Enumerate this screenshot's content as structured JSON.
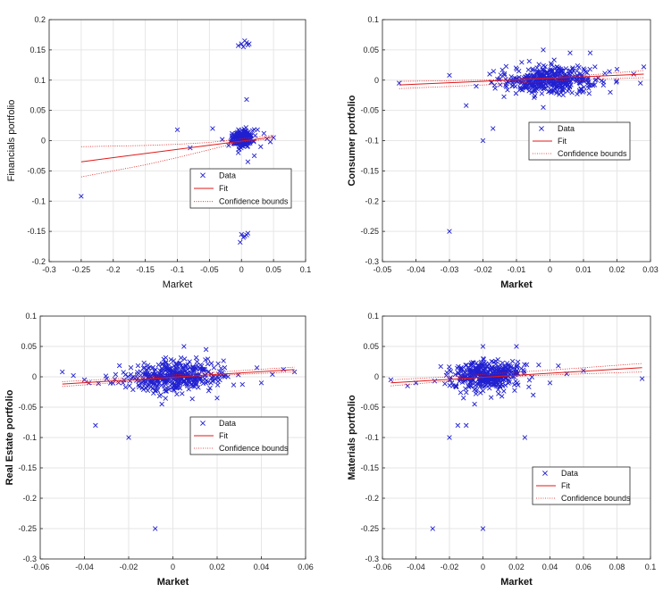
{
  "chart_data": [
    {
      "type": "scatter",
      "xlabel": "Market",
      "ylabel": "Financials portfolio",
      "xlim": [
        -0.3,
        0.1
      ],
      "ylim": [
        -0.2,
        0.2
      ],
      "xticks": [
        -0.3,
        -0.25,
        -0.2,
        -0.15,
        -0.1,
        -0.05,
        0,
        0.05,
        0.1
      ],
      "xtick_labels": [
        "-0.3",
        "-0.25",
        "-0.2",
        "-0.15",
        "-0.1",
        "-0.05",
        "0",
        "0.05",
        "0.1"
      ],
      "yticks": [
        -0.2,
        -0.15,
        -0.1,
        -0.05,
        0,
        0.05,
        0.1,
        0.15,
        0.2
      ],
      "ytick_labels": [
        "-0.2",
        "-0.15",
        "-0.1",
        "-0.05",
        "0",
        "0.05",
        "0.1",
        "0.15",
        "0.2"
      ],
      "grid": true,
      "legend": [
        "Data",
        "Fit",
        "Confidence bounds"
      ],
      "legend_loc": "center-right",
      "cluster": {
        "cx": 0.002,
        "cy": 0.003,
        "sx": 0.008,
        "sy": 0.006,
        "n": 260,
        "rx": 0.02,
        "ry": 0.018
      },
      "data": [
        [
          -0.25,
          -0.092
        ],
        [
          -0.1,
          0.018
        ],
        [
          -0.08,
          -0.012
        ],
        [
          -0.045,
          0.02
        ],
        [
          -0.03,
          0.002
        ],
        [
          -0.02,
          -0.008
        ],
        [
          -0.015,
          0.008
        ],
        [
          0.008,
          0.068
        ],
        [
          0.0,
          0.16
        ],
        [
          0.005,
          0.165
        ],
        [
          0.01,
          0.158
        ],
        [
          -0.005,
          0.157
        ],
        [
          0.012,
          0.16
        ],
        [
          0.003,
          0.155
        ],
        [
          0.008,
          0.162
        ],
        [
          0.0,
          -0.155
        ],
        [
          0.005,
          -0.158
        ],
        [
          0.01,
          -0.153
        ],
        [
          -0.002,
          -0.168
        ],
        [
          0.008,
          -0.156
        ],
        [
          0.003,
          -0.16
        ],
        [
          0.05,
          0.005
        ],
        [
          0.04,
          0.003
        ],
        [
          0.03,
          -0.01
        ],
        [
          0.035,
          0.012
        ],
        [
          0.01,
          -0.035
        ],
        [
          0.02,
          -0.025
        ],
        [
          -0.005,
          -0.02
        ],
        [
          0.025,
          0.018
        ],
        [
          0.045,
          -0.002
        ]
      ],
      "fit": {
        "x": [
          -0.25,
          0.05
        ],
        "y": [
          -0.035,
          0.006
        ]
      },
      "bound_upper": {
        "x": [
          -0.25,
          -0.15,
          -0.1,
          -0.05,
          0.0,
          0.05
        ],
        "y": [
          -0.01,
          -0.008,
          -0.006,
          -0.003,
          0.003,
          0.009
        ]
      },
      "bound_lower": {
        "x": [
          -0.25,
          -0.15,
          -0.1,
          -0.05,
          0.0,
          0.05
        ],
        "y": [
          -0.06,
          -0.04,
          -0.028,
          -0.015,
          -0.002,
          0.003
        ]
      }
    },
    {
      "type": "scatter",
      "xlabel": "Market",
      "ylabel": "Consumer portfolio",
      "xlim": [
        -0.05,
        0.03
      ],
      "ylim": [
        -0.3,
        0.1
      ],
      "xticks": [
        -0.05,
        -0.04,
        -0.03,
        -0.02,
        -0.01,
        0,
        0.01,
        0.02,
        0.03
      ],
      "xtick_labels": [
        "-0.05",
        "-0.04",
        "-0.03",
        "-0.02",
        "-0.01",
        "0",
        "0.01",
        "0.02",
        "0.03"
      ],
      "yticks": [
        -0.3,
        -0.25,
        -0.2,
        -0.15,
        -0.1,
        -0.05,
        0,
        0.05,
        0.1
      ],
      "ytick_labels": [
        "-0.3",
        "-0.25",
        "-0.2",
        "-0.15",
        "-0.1",
        "-0.05",
        "0",
        "0.05",
        "0.1"
      ],
      "grid": true,
      "legend": [
        "Data",
        "Fit",
        "Confidence bounds"
      ],
      "legend_loc": "center-right",
      "cluster": {
        "cx": 0.0,
        "cy": 0.0,
        "sx": 0.007,
        "sy": 0.011,
        "n": 420,
        "rx": 0.022,
        "ry": 0.035
      },
      "data": [
        [
          -0.045,
          -0.005
        ],
        [
          -0.03,
          0.008
        ],
        [
          -0.03,
          -0.25
        ],
        [
          -0.025,
          -0.042
        ],
        [
          -0.022,
          -0.01
        ],
        [
          -0.02,
          -0.1
        ],
        [
          -0.017,
          -0.08
        ],
        [
          -0.018,
          0.01
        ],
        [
          0.028,
          0.022
        ],
        [
          0.025,
          0.01
        ],
        [
          0.027,
          -0.005
        ],
        [
          0.02,
          0.018
        ],
        [
          0.018,
          -0.02
        ],
        [
          -0.002,
          0.05
        ],
        [
          0.006,
          0.045
        ],
        [
          -0.002,
          -0.045
        ],
        [
          0.012,
          0.045
        ]
      ],
      "fit": {
        "x": [
          -0.045,
          0.028
        ],
        "y": [
          -0.008,
          0.01
        ]
      },
      "bound_upper": {
        "x": [
          -0.045,
          -0.02,
          0.0,
          0.015,
          0.028
        ],
        "y": [
          -0.002,
          0.0,
          0.004,
          0.01,
          0.016
        ]
      },
      "bound_lower": {
        "x": [
          -0.045,
          -0.02,
          0.0,
          0.015,
          0.028
        ],
        "y": [
          -0.014,
          -0.008,
          -0.002,
          0.002,
          0.004
        ]
      }
    },
    {
      "type": "scatter",
      "xlabel": "Market",
      "ylabel": "Real Estate portfolio",
      "xlim": [
        -0.06,
        0.06
      ],
      "ylim": [
        -0.3,
        0.1
      ],
      "xticks": [
        -0.06,
        -0.04,
        -0.02,
        0,
        0.02,
        0.04,
        0.06
      ],
      "xtick_labels": [
        "-0.06",
        "-0.04",
        "-0.02",
        "0",
        "0.02",
        "0.04",
        "0.06"
      ],
      "yticks": [
        -0.3,
        -0.25,
        -0.2,
        -0.15,
        -0.1,
        -0.05,
        0,
        0.05,
        0.1
      ],
      "ytick_labels": [
        "-0.3",
        "-0.25",
        "-0.2",
        "-0.15",
        "-0.1",
        "-0.05",
        "0",
        "0.05",
        "0.1"
      ],
      "grid": true,
      "legend": [
        "Data",
        "Fit",
        "Confidence bounds"
      ],
      "legend_loc": "center-right",
      "cluster": {
        "cx": 0.0,
        "cy": 0.0,
        "sx": 0.011,
        "sy": 0.012,
        "n": 420,
        "rx": 0.035,
        "ry": 0.038
      },
      "data": [
        [
          -0.05,
          0.008
        ],
        [
          -0.045,
          0.002
        ],
        [
          -0.04,
          -0.005
        ],
        [
          -0.035,
          -0.08
        ],
        [
          -0.038,
          -0.01
        ],
        [
          -0.02,
          -0.1
        ],
        [
          -0.008,
          -0.25
        ],
        [
          0.055,
          0.008
        ],
        [
          0.05,
          0.012
        ],
        [
          0.045,
          0.004
        ],
        [
          0.04,
          -0.01
        ],
        [
          0.038,
          0.015
        ],
        [
          0.005,
          0.05
        ],
        [
          0.015,
          0.045
        ],
        [
          -0.005,
          -0.045
        ],
        [
          0.02,
          -0.035
        ]
      ],
      "fit": {
        "x": [
          -0.05,
          0.055
        ],
        "y": [
          -0.012,
          0.012
        ]
      },
      "bound_upper": {
        "x": [
          -0.05,
          -0.02,
          0.0,
          0.03,
          0.055
        ],
        "y": [
          -0.008,
          -0.002,
          0.003,
          0.01,
          0.016
        ]
      },
      "bound_lower": {
        "x": [
          -0.05,
          -0.02,
          0.0,
          0.03,
          0.055
        ],
        "y": [
          -0.016,
          -0.008,
          -0.002,
          0.004,
          0.008
        ]
      }
    },
    {
      "type": "scatter",
      "xlabel": "Market",
      "ylabel": "Materials portfolio",
      "xlim": [
        -0.06,
        0.1
      ],
      "ylim": [
        -0.3,
        0.1
      ],
      "xticks": [
        -0.06,
        -0.04,
        -0.02,
        0,
        0.02,
        0.04,
        0.06,
        0.08,
        0.1
      ],
      "xtick_labels": [
        "-0.06",
        "-0.04",
        "-0.02",
        "0",
        "0.02",
        "0.04",
        "0.06",
        "0.08",
        "0.1"
      ],
      "yticks": [
        -0.3,
        -0.25,
        -0.2,
        -0.15,
        -0.1,
        -0.05,
        0,
        0.05,
        0.1
      ],
      "ytick_labels": [
        "-0.3",
        "-0.25",
        "-0.2",
        "-0.15",
        "-0.1",
        "-0.05",
        "0",
        "0.05",
        "0.1"
      ],
      "grid": true,
      "legend": [
        "Data",
        "Fit",
        "Confidence bounds"
      ],
      "legend_loc": "bottom-right",
      "cluster": {
        "cx": 0.003,
        "cy": 0.002,
        "sx": 0.011,
        "sy": 0.012,
        "n": 420,
        "rx": 0.035,
        "ry": 0.04
      },
      "data": [
        [
          -0.055,
          -0.005
        ],
        [
          -0.045,
          -0.015
        ],
        [
          -0.04,
          -0.01
        ],
        [
          -0.03,
          -0.25
        ],
        [
          -0.02,
          -0.1
        ],
        [
          -0.015,
          -0.08
        ],
        [
          -0.01,
          -0.08
        ],
        [
          0.0,
          -0.25
        ],
        [
          0.025,
          -0.1
        ],
        [
          0.095,
          -0.003
        ],
        [
          0.06,
          0.01
        ],
        [
          0.05,
          0.005
        ],
        [
          0.045,
          0.018
        ],
        [
          0.04,
          -0.01
        ],
        [
          0.0,
          0.05
        ],
        [
          0.02,
          0.05
        ],
        [
          -0.005,
          -0.045
        ],
        [
          0.03,
          -0.03
        ]
      ],
      "fit": {
        "x": [
          -0.055,
          0.095
        ],
        "y": [
          -0.01,
          0.015
        ]
      },
      "bound_upper": {
        "x": [
          -0.055,
          -0.02,
          0.0,
          0.05,
          0.095
        ],
        "y": [
          -0.005,
          0.0,
          0.004,
          0.013,
          0.022
        ]
      },
      "bound_lower": {
        "x": [
          -0.055,
          -0.02,
          0.0,
          0.05,
          0.095
        ],
        "y": [
          -0.015,
          -0.007,
          -0.001,
          0.004,
          0.008
        ]
      }
    }
  ]
}
